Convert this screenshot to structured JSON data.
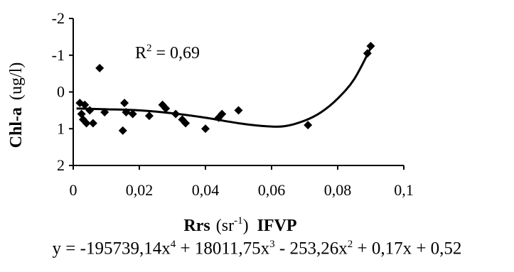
{
  "chart_data": {
    "type": "scatter",
    "title": "",
    "xlabel": "Rrs (sr ) IFVP",
    "ylabel": "Chl-a (ug/l)",
    "xlim": [
      0,
      0.1
    ],
    "ylim": [
      -2,
      2
    ],
    "y_axis_inverted": true,
    "grid": false,
    "x_ticks": [
      "0",
      "0,02",
      "0,04",
      "0,06",
      "0,08",
      "0,1"
    ],
    "y_ticks": [
      "-2",
      "-1",
      "0",
      "1",
      "2"
    ],
    "points": [
      {
        "x": 0.002,
        "y": 0.3
      },
      {
        "x": 0.0025,
        "y": 0.6
      },
      {
        "x": 0.003,
        "y": 0.75
      },
      {
        "x": 0.0035,
        "y": 0.35
      },
      {
        "x": 0.004,
        "y": 0.85
      },
      {
        "x": 0.005,
        "y": 0.5
      },
      {
        "x": 0.006,
        "y": 0.85
      },
      {
        "x": 0.008,
        "y": -0.65
      },
      {
        "x": 0.0095,
        "y": 0.55
      },
      {
        "x": 0.015,
        "y": 1.05
      },
      {
        "x": 0.0155,
        "y": 0.3
      },
      {
        "x": 0.016,
        "y": 0.55
      },
      {
        "x": 0.018,
        "y": 0.6
      },
      {
        "x": 0.023,
        "y": 0.65
      },
      {
        "x": 0.027,
        "y": 0.35
      },
      {
        "x": 0.028,
        "y": 0.45
      },
      {
        "x": 0.031,
        "y": 0.6
      },
      {
        "x": 0.033,
        "y": 0.75
      },
      {
        "x": 0.034,
        "y": 0.85
      },
      {
        "x": 0.04,
        "y": 1.0
      },
      {
        "x": 0.044,
        "y": 0.7
      },
      {
        "x": 0.045,
        "y": 0.6
      },
      {
        "x": 0.05,
        "y": 0.5
      },
      {
        "x": 0.071,
        "y": 0.9
      },
      {
        "x": 0.089,
        "y": -1.05
      },
      {
        "x": 0.09,
        "y": -1.25
      }
    ],
    "trendline": {
      "type": "polynomial",
      "degree": 4,
      "coefficients": [
        -195739.14,
        18011.75,
        -253.26,
        0.17,
        0.52
      ],
      "curve": [
        {
          "x": 0.001,
          "y": 0.45
        },
        {
          "x": 0.01,
          "y": 0.47
        },
        {
          "x": 0.02,
          "y": 0.5
        },
        {
          "x": 0.03,
          "y": 0.58
        },
        {
          "x": 0.04,
          "y": 0.7
        },
        {
          "x": 0.05,
          "y": 0.85
        },
        {
          "x": 0.058,
          "y": 0.93
        },
        {
          "x": 0.064,
          "y": 0.93
        },
        {
          "x": 0.07,
          "y": 0.78
        },
        {
          "x": 0.075,
          "y": 0.55
        },
        {
          "x": 0.08,
          "y": 0.18
        },
        {
          "x": 0.085,
          "y": -0.35
        },
        {
          "x": 0.09,
          "y": -1.2
        }
      ]
    },
    "annotation": {
      "r2_label": "R",
      "r2_exp": "2",
      "r2_value": " = 0,69"
    },
    "ylabel_main": "Chl-a",
    "ylabel_unit": "(ug/l)",
    "xlabel_parts": {
      "main": "Rrs",
      "unit_open": "(sr",
      "unit_exp": "-1",
      "unit_close": ")",
      "suffix": "IFVP"
    },
    "equation": {
      "prefix": "y = -195739,14x",
      "exp1": "4",
      "part2": " + 18011,75x",
      "exp2": "3",
      "part3": " - 253,26x",
      "exp3": "2",
      "part4": " + 0,17x + 0,52"
    }
  }
}
